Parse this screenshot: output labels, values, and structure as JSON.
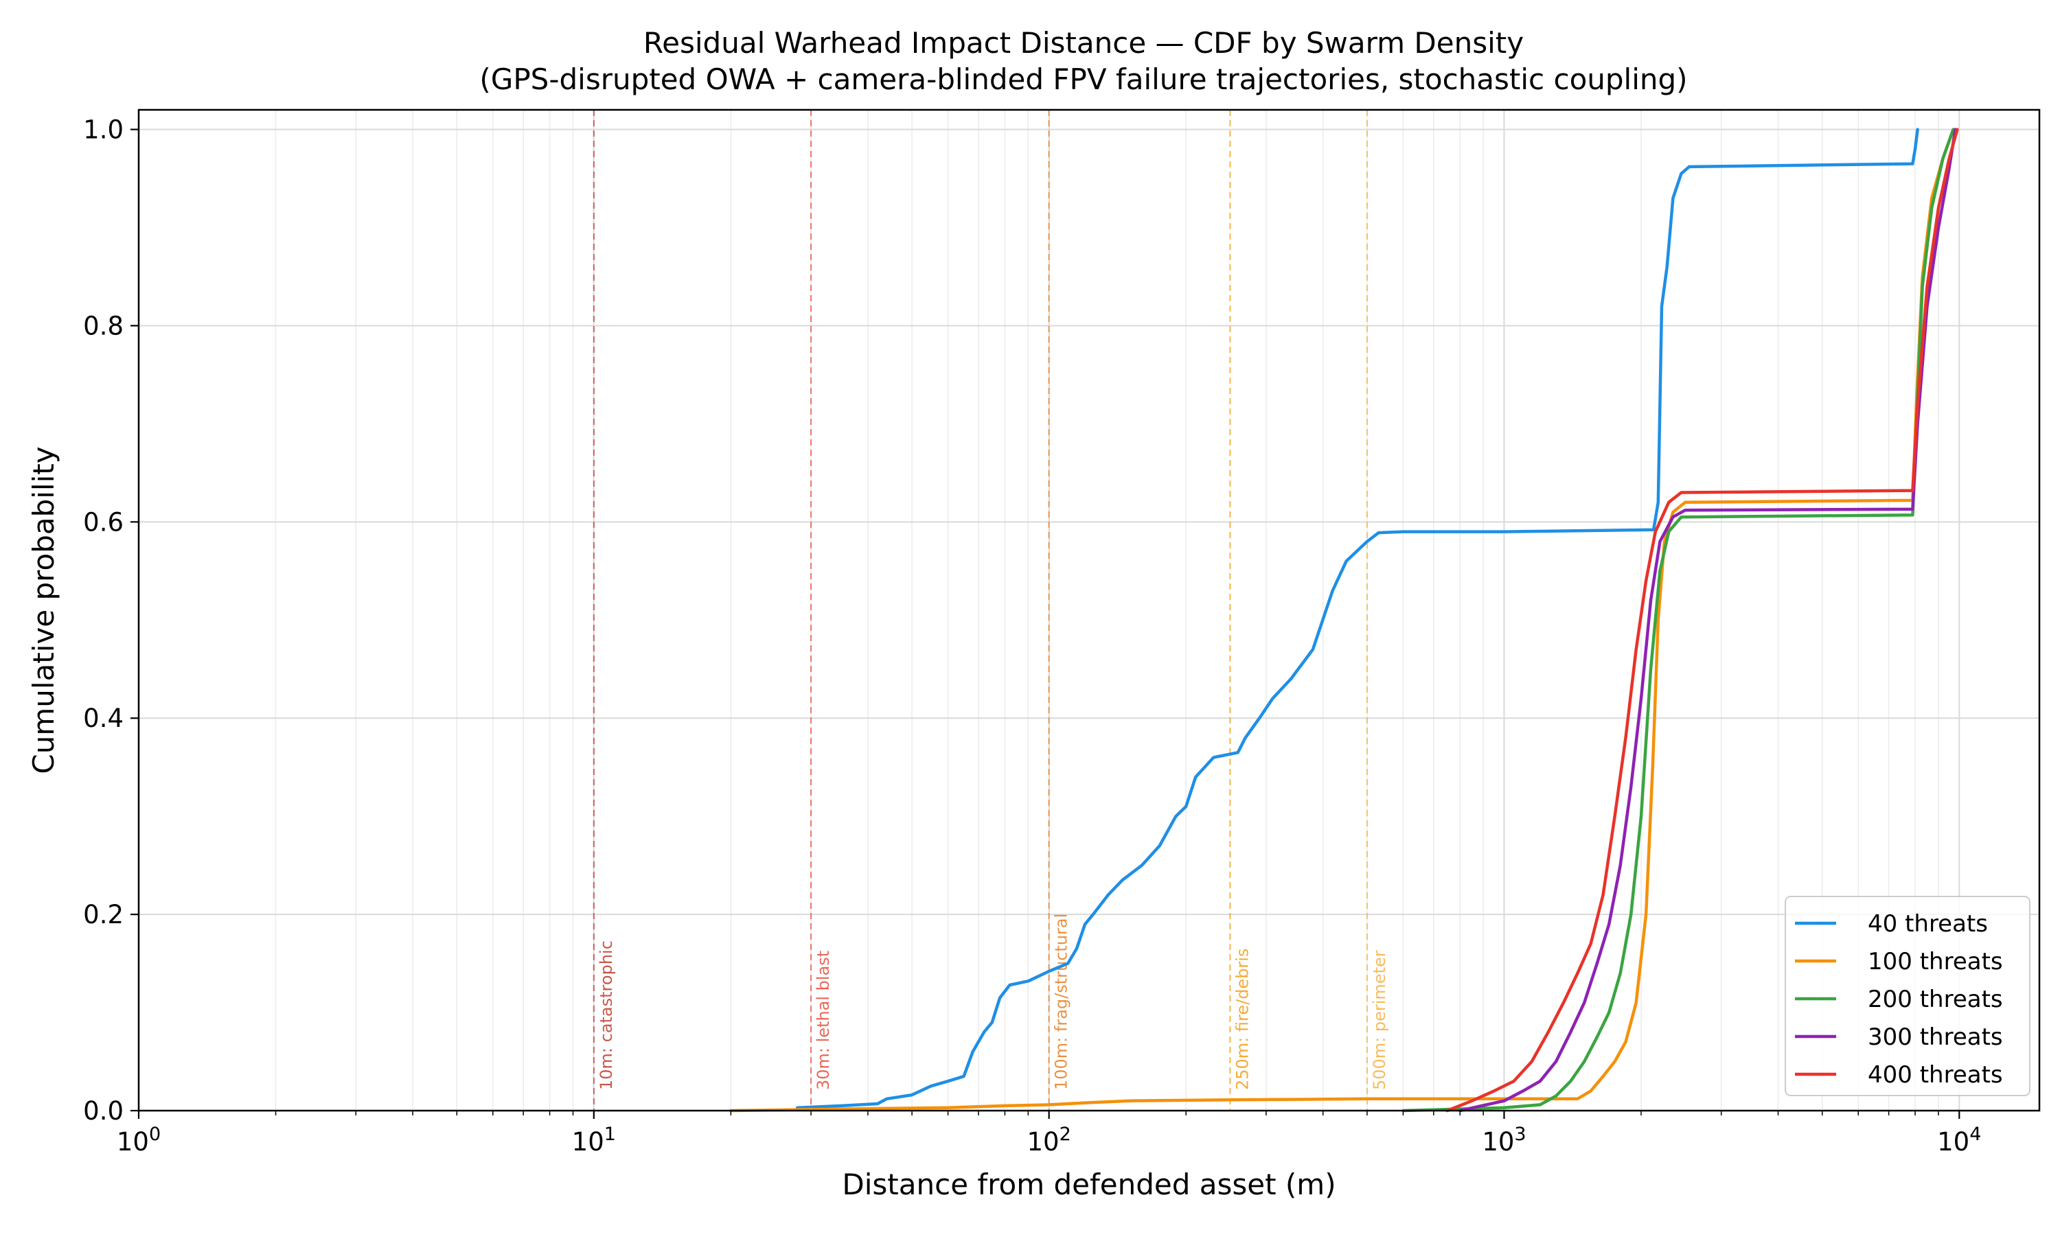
{
  "chart_data": {
    "type": "line",
    "title": "Residual Warhead Impact Distance — CDF by Swarm Density",
    "subtitle": "(GPS-disrupted OWA + camera-blinded FPV failure trajectories, stochastic coupling)",
    "xlabel": "Distance from defended asset (m)",
    "ylabel": "Cumulative probability",
    "xscale": "log",
    "xlim": [
      1,
      15000
    ],
    "ylim": [
      0,
      1.02
    ],
    "grid": true,
    "legend_position": "bottom-right",
    "x_ticks": [
      {
        "value": 1,
        "base": "10",
        "exp": "0"
      },
      {
        "value": 10,
        "base": "10",
        "exp": "1"
      },
      {
        "value": 100,
        "base": "10",
        "exp": "2"
      },
      {
        "value": 1000,
        "base": "10",
        "exp": "3"
      },
      {
        "value": 10000,
        "base": "10",
        "exp": "4"
      }
    ],
    "y_ticks": [
      {
        "value": 0.0,
        "label": "0.0"
      },
      {
        "value": 0.2,
        "label": "0.2"
      },
      {
        "value": 0.4,
        "label": "0.4"
      },
      {
        "value": 0.6,
        "label": "0.6"
      },
      {
        "value": 0.8,
        "label": "0.8"
      },
      {
        "value": 1.0,
        "label": "1.0"
      }
    ],
    "thresholds": [
      {
        "x": 10,
        "label": "10m: catastrophic",
        "color": "#c0392b"
      },
      {
        "x": 30,
        "label": "30m: lethal blast",
        "color": "#e74c3c"
      },
      {
        "x": 100,
        "label": "100m: frag/structural",
        "color": "#e67e22"
      },
      {
        "x": 250,
        "label": "250m: fire/debris",
        "color": "#f39c12"
      },
      {
        "x": 500,
        "label": "500m: perimeter",
        "color": "#f5b041"
      }
    ],
    "series": [
      {
        "name": "40 threats",
        "color": "#1f8fe5",
        "points": [
          [
            28,
            0.003
          ],
          [
            35,
            0.005
          ],
          [
            42,
            0.007
          ],
          [
            44,
            0.012
          ],
          [
            50,
            0.016
          ],
          [
            55,
            0.025
          ],
          [
            60,
            0.03
          ],
          [
            65,
            0.035
          ],
          [
            68,
            0.06
          ],
          [
            72,
            0.08
          ],
          [
            75,
            0.09
          ],
          [
            78,
            0.115
          ],
          [
            82,
            0.128
          ],
          [
            90,
            0.132
          ],
          [
            100,
            0.142
          ],
          [
            110,
            0.15
          ],
          [
            115,
            0.165
          ],
          [
            120,
            0.19
          ],
          [
            125,
            0.2
          ],
          [
            135,
            0.22
          ],
          [
            145,
            0.235
          ],
          [
            160,
            0.25
          ],
          [
            175,
            0.27
          ],
          [
            190,
            0.3
          ],
          [
            200,
            0.31
          ],
          [
            210,
            0.34
          ],
          [
            230,
            0.36
          ],
          [
            260,
            0.365
          ],
          [
            270,
            0.38
          ],
          [
            290,
            0.4
          ],
          [
            310,
            0.42
          ],
          [
            340,
            0.44
          ],
          [
            380,
            0.47
          ],
          [
            420,
            0.53
          ],
          [
            450,
            0.56
          ],
          [
            500,
            0.58
          ],
          [
            530,
            0.589
          ],
          [
            600,
            0.59
          ],
          [
            1000,
            0.59
          ],
          [
            2130,
            0.592
          ],
          [
            2180,
            0.62
          ],
          [
            2220,
            0.82
          ],
          [
            2280,
            0.86
          ],
          [
            2350,
            0.93
          ],
          [
            2450,
            0.955
          ],
          [
            2550,
            0.962
          ],
          [
            7900,
            0.965
          ],
          [
            8000,
            0.98
          ],
          [
            8100,
            1.0
          ]
        ]
      },
      {
        "name": "100 threats",
        "color": "#f5910a",
        "points": [
          [
            20,
            0.0
          ],
          [
            40,
            0.002
          ],
          [
            60,
            0.003
          ],
          [
            80,
            0.005
          ],
          [
            100,
            0.006
          ],
          [
            120,
            0.008
          ],
          [
            150,
            0.01
          ],
          [
            250,
            0.011
          ],
          [
            500,
            0.012
          ],
          [
            1000,
            0.012
          ],
          [
            1450,
            0.012
          ],
          [
            1550,
            0.02
          ],
          [
            1650,
            0.035
          ],
          [
            1750,
            0.05
          ],
          [
            1850,
            0.07
          ],
          [
            1950,
            0.11
          ],
          [
            2050,
            0.2
          ],
          [
            2120,
            0.35
          ],
          [
            2180,
            0.5
          ],
          [
            2250,
            0.58
          ],
          [
            2350,
            0.61
          ],
          [
            2500,
            0.62
          ],
          [
            7900,
            0.622
          ],
          [
            8050,
            0.72
          ],
          [
            8300,
            0.85
          ],
          [
            8700,
            0.93
          ],
          [
            9200,
            0.97
          ],
          [
            9700,
            1.0
          ]
        ]
      },
      {
        "name": "200 threats",
        "color": "#3aa441",
        "points": [
          [
            600,
            0.0
          ],
          [
            1000,
            0.003
          ],
          [
            1200,
            0.006
          ],
          [
            1300,
            0.015
          ],
          [
            1400,
            0.03
          ],
          [
            1500,
            0.05
          ],
          [
            1600,
            0.075
          ],
          [
            1700,
            0.1
          ],
          [
            1800,
            0.14
          ],
          [
            1900,
            0.2
          ],
          [
            2000,
            0.3
          ],
          [
            2100,
            0.45
          ],
          [
            2200,
            0.55
          ],
          [
            2300,
            0.59
          ],
          [
            2450,
            0.605
          ],
          [
            7900,
            0.607
          ],
          [
            8050,
            0.7
          ],
          [
            8300,
            0.84
          ],
          [
            8700,
            0.92
          ],
          [
            9200,
            0.97
          ],
          [
            9700,
            1.0
          ]
        ]
      },
      {
        "name": "300 threats",
        "color": "#8e22b3",
        "points": [
          [
            800,
            0.0
          ],
          [
            1000,
            0.01
          ],
          [
            1100,
            0.02
          ],
          [
            1200,
            0.03
          ],
          [
            1300,
            0.05
          ],
          [
            1400,
            0.08
          ],
          [
            1500,
            0.11
          ],
          [
            1600,
            0.15
          ],
          [
            1700,
            0.19
          ],
          [
            1800,
            0.25
          ],
          [
            1900,
            0.33
          ],
          [
            2000,
            0.42
          ],
          [
            2100,
            0.52
          ],
          [
            2200,
            0.58
          ],
          [
            2350,
            0.605
          ],
          [
            2500,
            0.612
          ],
          [
            7900,
            0.613
          ],
          [
            8100,
            0.7
          ],
          [
            8500,
            0.82
          ],
          [
            9000,
            0.9
          ],
          [
            9500,
            0.96
          ],
          [
            9800,
            1.0
          ]
        ]
      },
      {
        "name": "400 threats",
        "color": "#e8332a",
        "points": [
          [
            750,
            0.0
          ],
          [
            850,
            0.01
          ],
          [
            950,
            0.02
          ],
          [
            1050,
            0.03
          ],
          [
            1150,
            0.05
          ],
          [
            1250,
            0.08
          ],
          [
            1350,
            0.11
          ],
          [
            1450,
            0.14
          ],
          [
            1550,
            0.17
          ],
          [
            1650,
            0.22
          ],
          [
            1750,
            0.3
          ],
          [
            1850,
            0.38
          ],
          [
            1950,
            0.47
          ],
          [
            2050,
            0.54
          ],
          [
            2150,
            0.59
          ],
          [
            2300,
            0.62
          ],
          [
            2450,
            0.63
          ],
          [
            7900,
            0.632
          ],
          [
            8100,
            0.72
          ],
          [
            8500,
            0.84
          ],
          [
            9000,
            0.92
          ],
          [
            9500,
            0.97
          ],
          [
            9900,
            1.0
          ]
        ]
      }
    ]
  }
}
